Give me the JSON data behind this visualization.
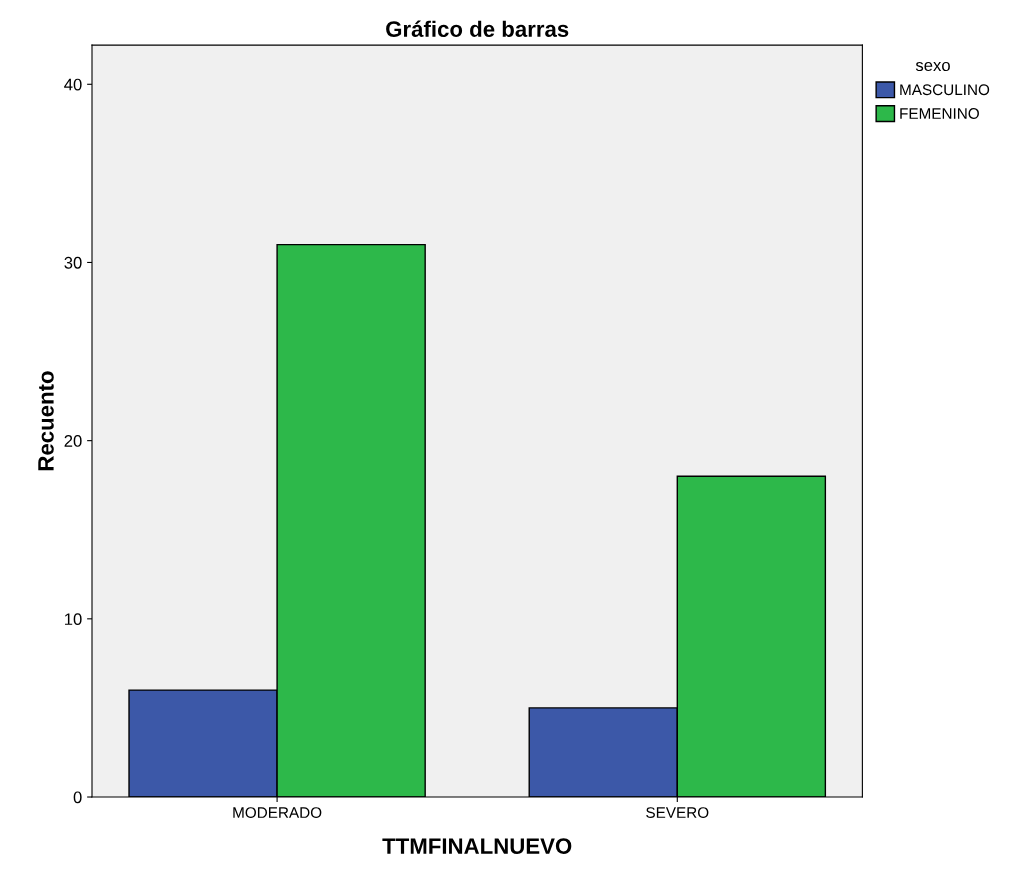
{
  "chart_data": {
    "type": "bar",
    "title": "Gráfico de barras",
    "xlabel": "TTMFINALNUEVO",
    "ylabel": "Recuento",
    "legend_title": "sexo",
    "categories": [
      "MODERADO",
      "SEVERO"
    ],
    "series": [
      {
        "name": "MASCULINO",
        "color": "#3c58a8",
        "values": [
          6,
          5
        ]
      },
      {
        "name": "FEMENINO",
        "color": "#2db84a",
        "values": [
          31,
          18
        ]
      }
    ],
    "ylim": [
      0,
      42.2
    ],
    "yticks": [
      0,
      10,
      20,
      30,
      40
    ],
    "grid": false,
    "legend": "top right"
  }
}
